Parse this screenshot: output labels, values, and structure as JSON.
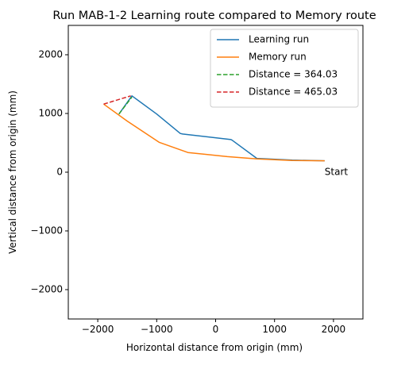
{
  "chart_data": {
    "type": "line",
    "title": "Run MAB-1-2 Learning route compared to Memory route",
    "xlabel": "Horizontal distance from origin (mm)",
    "ylabel": "Vertical distance from origin (mm)",
    "xlim": [
      -2500,
      2500
    ],
    "ylim": [
      -2500,
      2500
    ],
    "xticks": [
      -2000,
      -1000,
      0,
      1000,
      2000
    ],
    "yticks": [
      -2000,
      -1000,
      0,
      1000,
      2000
    ],
    "xtick_labels": [
      "−2000",
      "−1000",
      "0",
      "1000",
      "2000"
    ],
    "ytick_labels": [
      "−2000",
      "−1000",
      "0",
      "1000",
      "2000"
    ],
    "grid": false,
    "legend_position": "top-right",
    "series": [
      {
        "name": "Learning run",
        "color": "#1f77b4",
        "style": "solid",
        "points": [
          [
            1850,
            195
          ],
          [
            1300,
            205
          ],
          [
            700,
            235
          ],
          [
            280,
            545
          ],
          [
            260,
            555
          ],
          [
            -560,
            650
          ],
          [
            -600,
            660
          ],
          [
            -1000,
            990
          ],
          [
            -1420,
            1300
          ],
          [
            -1640,
            990
          ]
        ]
      },
      {
        "name": "Memory run",
        "color": "#ff7f0e",
        "style": "solid",
        "points": [
          [
            1850,
            195
          ],
          [
            1300,
            200
          ],
          [
            700,
            225
          ],
          [
            200,
            265
          ],
          [
            -420,
            330
          ],
          [
            -470,
            335
          ],
          [
            -960,
            510
          ],
          [
            -1500,
            870
          ],
          [
            -1900,
            1160
          ]
        ]
      },
      {
        "name": "Distance = 364.03",
        "color": "#2ca02c",
        "style": "dashed",
        "points": [
          [
            -1640,
            990
          ],
          [
            -1420,
            1280
          ]
        ]
      },
      {
        "name": "Distance = 465.03",
        "color": "#d62728",
        "style": "dashed",
        "points": [
          [
            -1900,
            1160
          ],
          [
            -1440,
            1300
          ]
        ]
      }
    ],
    "annotations": [
      {
        "text": "Start",
        "x": 1850,
        "y": 0
      }
    ]
  }
}
